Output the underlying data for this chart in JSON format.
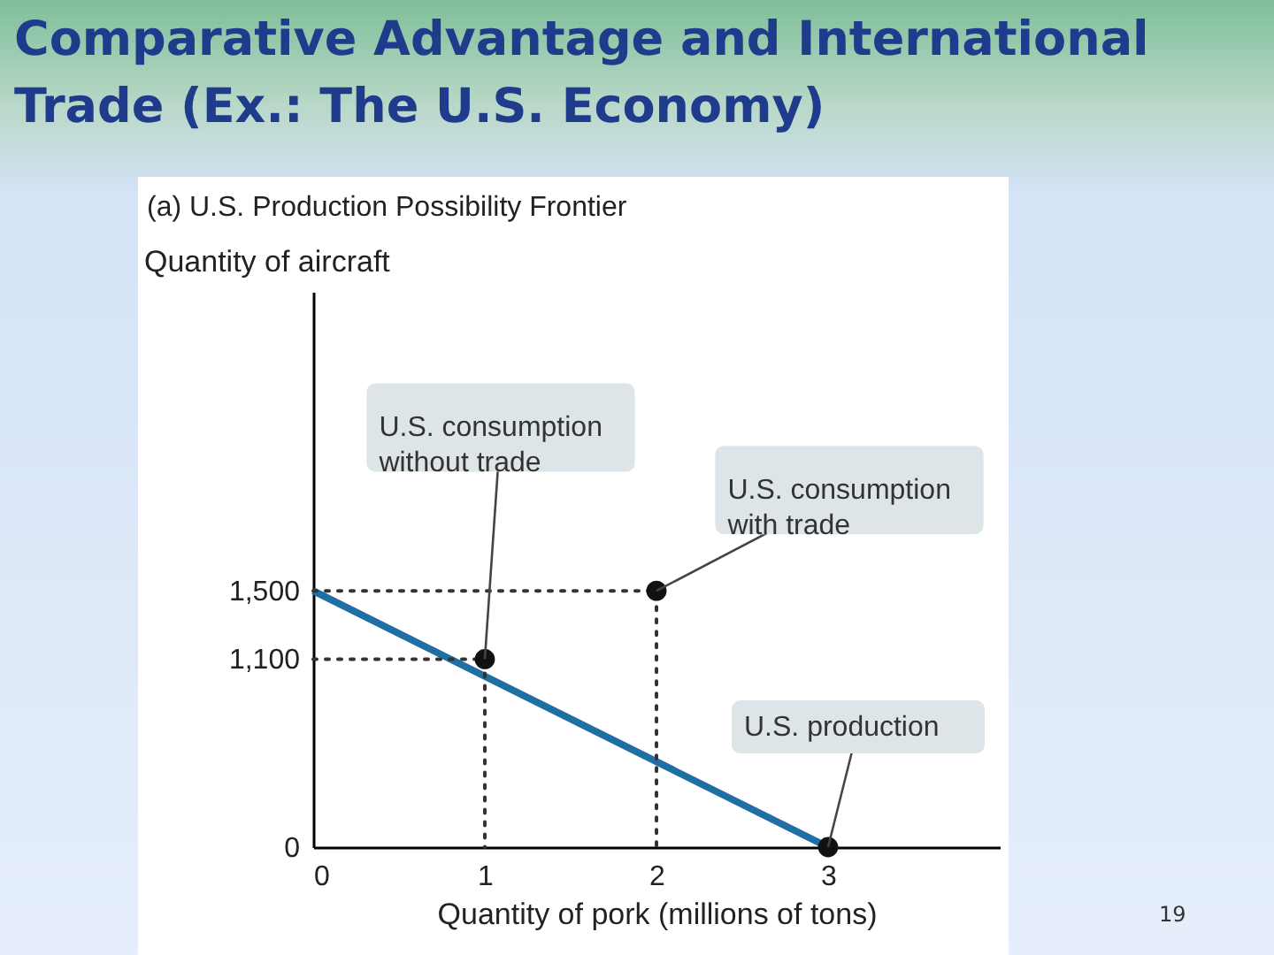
{
  "chart_data": {
    "type": "line",
    "title": "Comparative Advantage and International Trade (Ex.: The U.S. Economy)",
    "subtitle": "(a) U.S. Production Possibility Frontier",
    "xlabel": "Quantity of pork (millions of tons)",
    "ylabel": "Quantity of aircraft",
    "xlim": [
      0,
      4
    ],
    "ylim": [
      0,
      3250
    ],
    "xticks": [
      0,
      1,
      2,
      3
    ],
    "yticks": [
      0,
      {
        "value": 1100,
        "label": "1,100"
      },
      {
        "value": 1500,
        "label": "1,500"
      }
    ],
    "grid": false,
    "line_style": "solid",
    "series": [
      {
        "color": "#1f6fa5",
        "x": [
          0,
          3
        ],
        "values": [
          1500,
          0
        ]
      },
      {
        "color": "#333333",
        "line_style": "dotted",
        "x": [
          0,
          2,
          2
        ],
        "values": [
          1500,
          1500,
          0
        ]
      },
      {
        "color": "#333333",
        "line_style": "dotted",
        "x": [
          0,
          1,
          1
        ],
        "values": [
          1100,
          1100,
          0
        ]
      },
      {
        "type": "scatter",
        "color": "#111111",
        "x": [
          1,
          2,
          3
        ],
        "values": [
          1100,
          1500,
          0
        ]
      }
    ],
    "annotations": [
      {
        "text": "U.S. consumption without trade",
        "x": 1,
        "y": 1100
      },
      {
        "text": "U.S. consumption with trade",
        "x": 2,
        "y": 1500
      },
      {
        "text": "U.S. production",
        "x": 3,
        "y": 0
      },
      "19"
    ]
  }
}
